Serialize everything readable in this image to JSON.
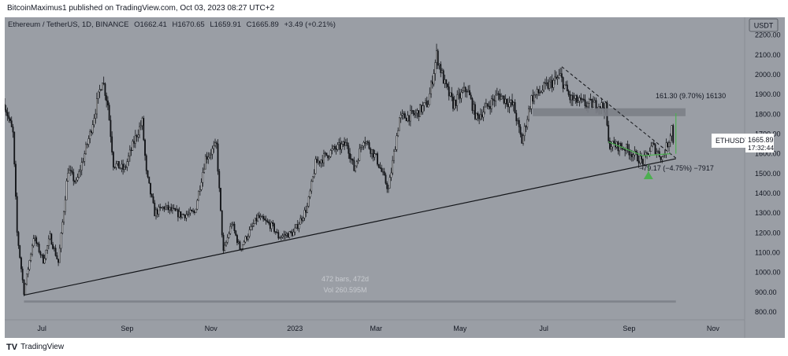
{
  "header": {
    "published_text": "BitcoinMaximus1 published on TradingView.com, Oct 03, 2023 08:27 UTC+2"
  },
  "symbol": {
    "name": "Ethereum / TetherUS, 1D, BINANCE",
    "o_label": "O",
    "o": "1662.41",
    "h_label": "H",
    "h": "1670.65",
    "l_label": "L",
    "l": "1659.91",
    "c_label": "C",
    "c": "1665.89",
    "change": "+3.49 (+0.21%)"
  },
  "currency_button": "USDT",
  "price_label": {
    "ticker": "ETHUSDT",
    "price": "1665.89",
    "countdown": "17:32:44"
  },
  "annotations": {
    "upper_measure": "161.30 (9.70%) 16130",
    "lower_measure": "−79.17 (−4.75%) −7917",
    "bars_info": "472 bars, 472d",
    "vol_info": "Vol 260.595M"
  },
  "footer": {
    "brand": "TradingView"
  },
  "colors": {
    "background": "#9a9ea5",
    "candle": "#121418",
    "accent_green": "#4caf50",
    "resistance_zone": "#7c8087"
  },
  "chart_data": {
    "type": "candlestick",
    "y_ticks": [
      800,
      900,
      1000,
      1100,
      1200,
      1300,
      1400,
      1500,
      1600,
      1700,
      1800,
      1900,
      2000,
      2100,
      2200
    ],
    "ylim": [
      760,
      2290
    ],
    "x_tick_labels": [
      "Jul",
      "Sep",
      "Nov",
      "2023",
      "Mar",
      "May",
      "Jul",
      "Sep",
      "Nov"
    ],
    "x_tick_dates": [
      "2022-07-01",
      "2022-09-01",
      "2022-11-01",
      "2023-01-01",
      "2023-03-01",
      "2023-05-01",
      "2023-07-01",
      "2023-09-01",
      "2023-11-01"
    ],
    "xlim": [
      "2022-06-04",
      "2023-11-24"
    ],
    "price_path": [
      [
        "2022-06-04",
        1850
      ],
      [
        "2022-06-10",
        1700
      ],
      [
        "2022-06-13",
        1200
      ],
      [
        "2022-06-18",
        900
      ],
      [
        "2022-06-25",
        1180
      ],
      [
        "2022-07-02",
        1060
      ],
      [
        "2022-07-07",
        1180
      ],
      [
        "2022-07-13",
        1050
      ],
      [
        "2022-07-20",
        1520
      ],
      [
        "2022-07-26",
        1450
      ],
      [
        "2022-08-05",
        1700
      ],
      [
        "2022-08-14",
        1980
      ],
      [
        "2022-08-18",
        1850
      ],
      [
        "2022-08-22",
        1550
      ],
      [
        "2022-08-30",
        1520
      ],
      [
        "2022-09-08",
        1700
      ],
      [
        "2022-09-12",
        1760
      ],
      [
        "2022-09-15",
        1500
      ],
      [
        "2022-09-21",
        1300
      ],
      [
        "2022-09-28",
        1330
      ],
      [
        "2022-10-10",
        1290
      ],
      [
        "2022-10-20",
        1300
      ],
      [
        "2022-10-28",
        1580
      ],
      [
        "2022-11-05",
        1640
      ],
      [
        "2022-11-08",
        1300
      ],
      [
        "2022-11-10",
        1100
      ],
      [
        "2022-11-16",
        1250
      ],
      [
        "2022-11-22",
        1120
      ],
      [
        "2022-12-05",
        1280
      ],
      [
        "2022-12-16",
        1230
      ],
      [
        "2022-12-20",
        1180
      ],
      [
        "2022-12-31",
        1200
      ],
      [
        "2023-01-10",
        1330
      ],
      [
        "2023-01-16",
        1550
      ],
      [
        "2023-01-29",
        1620
      ],
      [
        "2023-02-08",
        1650
      ],
      [
        "2023-02-13",
        1520
      ],
      [
        "2023-02-20",
        1680
      ],
      [
        "2023-03-01",
        1580
      ],
      [
        "2023-03-10",
        1420
      ],
      [
        "2023-03-18",
        1780
      ],
      [
        "2023-03-30",
        1800
      ],
      [
        "2023-04-08",
        1860
      ],
      [
        "2023-04-14",
        2100
      ],
      [
        "2023-04-20",
        1950
      ],
      [
        "2023-04-26",
        1850
      ],
      [
        "2023-05-06",
        1930
      ],
      [
        "2023-05-13",
        1780
      ],
      [
        "2023-05-29",
        1900
      ],
      [
        "2023-06-09",
        1840
      ],
      [
        "2023-06-15",
        1660
      ],
      [
        "2023-06-22",
        1880
      ],
      [
        "2023-07-01",
        1930
      ],
      [
        "2023-07-13",
        1990
      ],
      [
        "2023-07-20",
        1880
      ],
      [
        "2023-07-31",
        1850
      ],
      [
        "2023-08-10",
        1850
      ],
      [
        "2023-08-15",
        1830
      ],
      [
        "2023-08-17",
        1650
      ],
      [
        "2023-08-29",
        1630
      ],
      [
        "2023-09-11",
        1560
      ],
      [
        "2023-09-18",
        1640
      ],
      [
        "2023-09-25",
        1580
      ],
      [
        "2023-09-30",
        1670
      ],
      [
        "2023-10-02",
        1740
      ],
      [
        "2023-10-03",
        1666
      ]
    ],
    "annotations_geometry": {
      "support_line": {
        "from": [
          "2022-06-18",
          885
        ],
        "to": [
          "2023-10-05",
          1575
        ]
      },
      "descending_line": {
        "from": [
          "2023-07-14",
          2040
        ],
        "to": [
          "2023-10-05",
          1578
        ]
      },
      "resistance_zone": {
        "x0": "2023-06-23",
        "x1": "2023-10-12",
        "y0": 1790,
        "y1": 1830
      },
      "baseline_zone": {
        "x0": "2022-06-18",
        "x1": "2023-10-05",
        "y0": 847,
        "y1": 858
      },
      "green_line": {
        "from": [
          "2023-08-17",
          1660
        ],
        "via": [
          "2023-09-11",
          1590
        ],
        "to": [
          "2023-10-01",
          1600
        ]
      },
      "upper_measure_arrow": {
        "date": "2023-10-05",
        "from": 1600,
        "to": 1805
      },
      "lower_measure_arrow": {
        "date": "2023-09-15",
        "from": 1545,
        "to": 1495
      }
    },
    "title": "Ethereum / TetherUS, 1D, BINANCE"
  }
}
